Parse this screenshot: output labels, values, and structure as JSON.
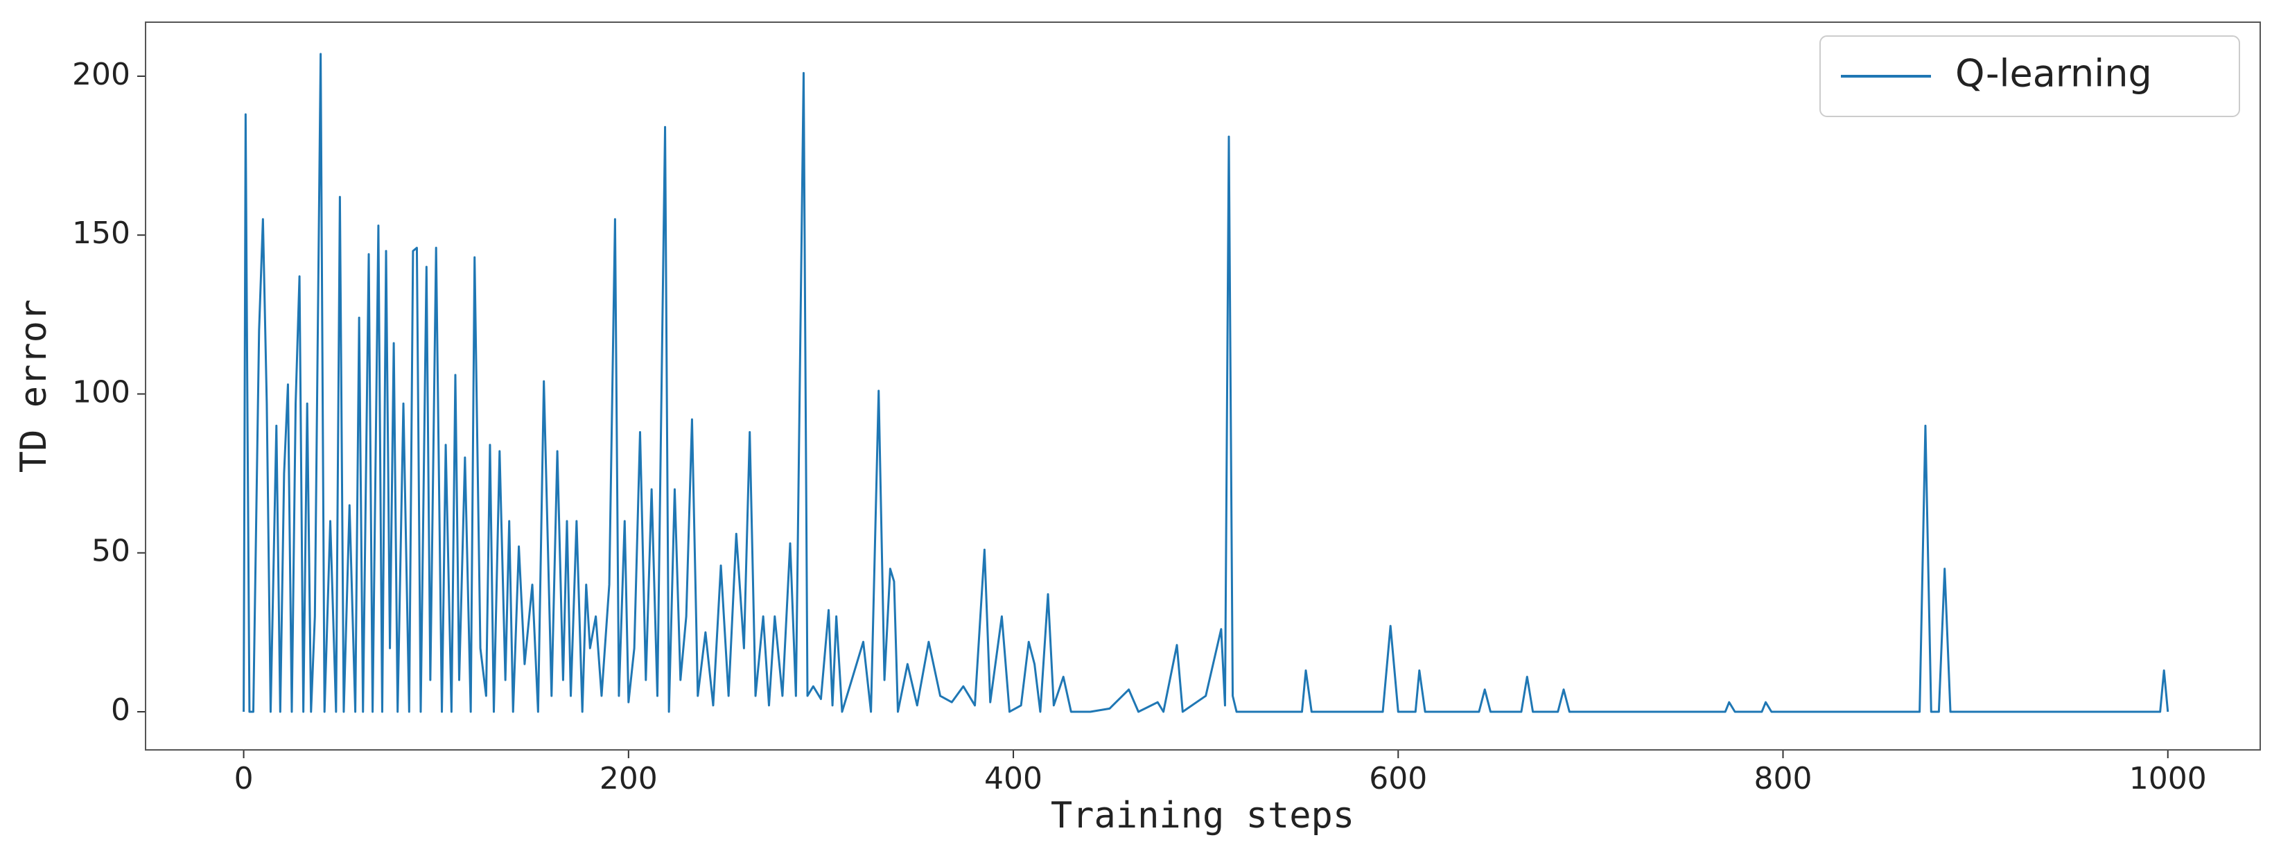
{
  "chart_data": {
    "type": "line",
    "xlabel": "Training steps",
    "ylabel": "TD error",
    "legend": "upper right",
    "grid": false,
    "xlim": [
      -51,
      1048
    ],
    "ylim": [
      -12,
      217
    ],
    "xticks": [
      0,
      200,
      400,
      600,
      800,
      1000
    ],
    "yticks": [
      0,
      50,
      100,
      150,
      200
    ],
    "series": [
      {
        "name": "Q-learning",
        "color": "#1f77b4",
        "x": [
          0,
          1,
          2,
          3,
          5,
          8,
          10,
          12,
          14,
          17,
          19,
          21,
          23,
          25,
          27,
          29,
          31,
          33,
          35,
          37,
          40,
          42,
          45,
          48,
          50,
          52,
          55,
          58,
          60,
          62,
          65,
          67,
          70,
          72,
          74,
          76,
          78,
          80,
          83,
          86,
          88,
          90,
          92,
          95,
          97,
          100,
          103,
          105,
          108,
          110,
          112,
          115,
          118,
          120,
          123,
          126,
          128,
          130,
          133,
          136,
          138,
          140,
          143,
          146,
          150,
          153,
          156,
          160,
          163,
          166,
          168,
          170,
          173,
          176,
          178,
          180,
          183,
          186,
          190,
          193,
          195,
          198,
          200,
          203,
          206,
          209,
          212,
          215,
          219,
          221,
          224,
          227,
          230,
          233,
          236,
          240,
          244,
          248,
          252,
          256,
          260,
          263,
          266,
          270,
          273,
          276,
          280,
          284,
          287,
          291,
          293,
          296,
          300,
          304,
          306,
          308,
          311,
          316,
          322,
          326,
          330,
          333,
          336,
          338,
          340,
          345,
          350,
          356,
          362,
          368,
          374,
          380,
          385,
          388,
          394,
          398,
          404,
          408,
          411,
          414,
          418,
          421,
          426,
          430,
          440,
          450,
          460,
          465,
          475,
          478,
          485,
          488,
          500,
          508,
          510,
          512,
          514,
          516,
          540,
          550,
          552,
          555,
          592,
          596,
          600,
          609,
          611,
          614,
          642,
          645,
          648,
          664,
          667,
          670,
          683,
          686,
          689,
          770,
          772,
          775,
          789,
          791,
          794,
          871,
          874,
          877,
          881,
          884,
          887,
          996,
          998,
          1000
        ],
        "values": [
          0,
          188,
          90,
          0,
          0,
          120,
          155,
          97,
          0,
          90,
          0,
          75,
          103,
          0,
          97,
          137,
          0,
          97,
          0,
          30,
          207,
          0,
          60,
          0,
          162,
          0,
          65,
          0,
          124,
          0,
          144,
          0,
          153,
          0,
          145,
          20,
          116,
          0,
          97,
          0,
          145,
          146,
          0,
          140,
          10,
          146,
          0,
          84,
          0,
          106,
          10,
          80,
          0,
          143,
          20,
          5,
          84,
          0,
          82,
          10,
          60,
          0,
          52,
          15,
          40,
          0,
          104,
          5,
          82,
          10,
          60,
          5,
          60,
          0,
          40,
          20,
          30,
          5,
          40,
          155,
          5,
          60,
          3,
          20,
          88,
          10,
          70,
          5,
          184,
          0,
          70,
          10,
          30,
          92,
          5,
          25,
          2,
          46,
          5,
          56,
          20,
          88,
          5,
          30,
          2,
          30,
          5,
          53,
          5,
          201,
          5,
          8,
          4,
          32,
          2,
          30,
          0,
          10,
          22,
          0,
          101,
          10,
          45,
          41,
          0,
          15,
          2,
          22,
          5,
          3,
          8,
          2,
          51,
          3,
          30,
          0,
          2,
          22,
          15,
          0,
          37,
          2,
          11,
          0,
          0,
          1,
          7,
          0,
          3,
          0,
          21,
          0,
          5,
          26,
          2,
          181,
          5,
          0,
          0,
          0,
          13,
          0,
          0,
          27,
          0,
          0,
          13,
          0,
          0,
          7,
          0,
          0,
          11,
          0,
          0,
          7,
          0,
          0,
          3,
          0,
          0,
          3,
          0,
          0,
          90,
          0,
          0,
          45,
          0,
          0,
          13,
          0
        ]
      }
    ]
  }
}
